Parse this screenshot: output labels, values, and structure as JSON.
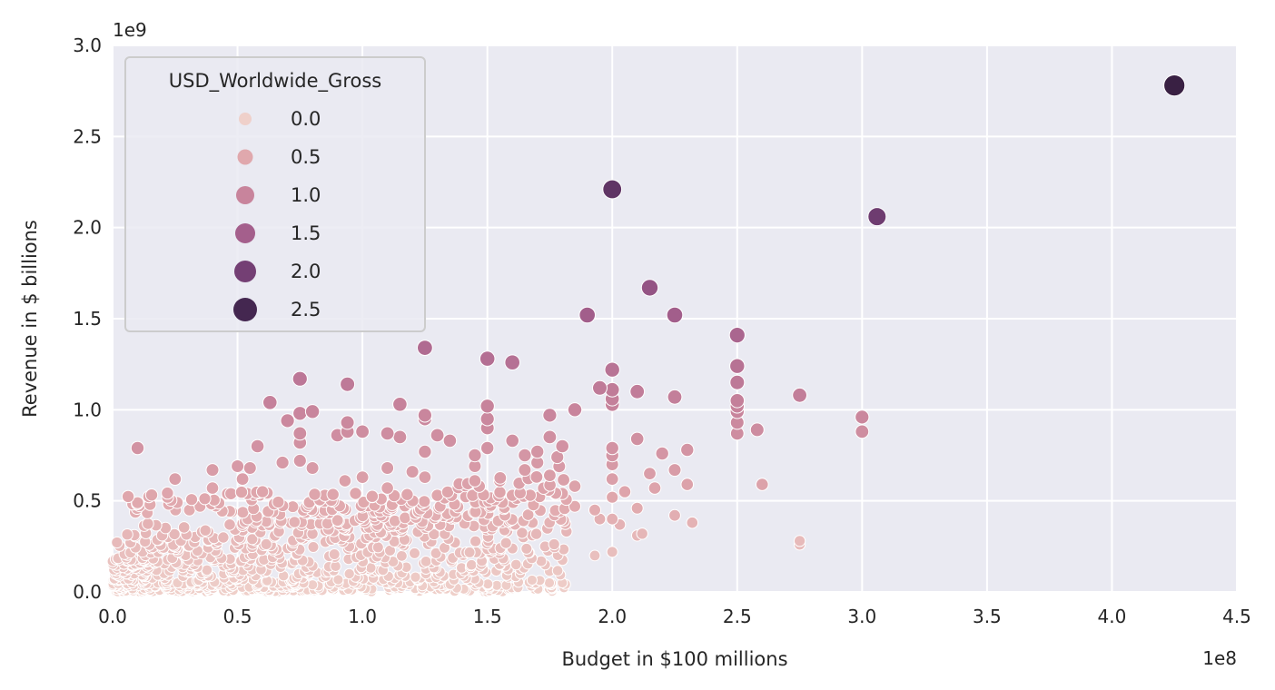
{
  "chart_data": {
    "type": "scatter",
    "title": "",
    "xlabel": "Budget in $100 millions",
    "ylabel": "Revenue in $ billions",
    "x_offset_label": "1e8",
    "y_offset_label": "1e9",
    "xlim": [
      0,
      4.5
    ],
    "ylim": [
      0,
      3.0
    ],
    "x_ticks": [
      "0.0",
      "0.5",
      "1.0",
      "1.5",
      "2.0",
      "2.5",
      "3.0",
      "3.5",
      "4.0",
      "4.5"
    ],
    "y_ticks": [
      "0.0",
      "0.5",
      "1.0",
      "1.5",
      "2.0",
      "2.5",
      "3.0"
    ],
    "grid": true,
    "background": "#eaeaf2",
    "hue_variable": "USD_Worldwide_Gross",
    "size_variable": "USD_Worldwide_Gross",
    "legend": {
      "title": "USD_Worldwide_Gross",
      "position": "upper left",
      "entries": [
        {
          "label": "0.0",
          "color": "#efd0ca",
          "size": 7
        },
        {
          "label": "0.5",
          "color": "#e0a8ad",
          "size": 8.5
        },
        {
          "label": "1.0",
          "color": "#c8849c",
          "size": 10
        },
        {
          "label": "1.5",
          "color": "#a45f8c",
          "size": 11
        },
        {
          "label": "2.0",
          "color": "#743f74",
          "size": 12
        },
        {
          "label": "2.5",
          "color": "#442750",
          "size": 13
        }
      ]
    },
    "units_note": "x in 1e8 USD, y in 1e9 USD",
    "outliers": [
      {
        "x": 4.25,
        "y": 2.78
      },
      {
        "x": 2.0,
        "y": 2.21
      },
      {
        "x": 3.06,
        "y": 2.06
      },
      {
        "x": 2.15,
        "y": 1.67
      },
      {
        "x": 1.9,
        "y": 1.52
      },
      {
        "x": 2.25,
        "y": 1.52
      },
      {
        "x": 2.5,
        "y": 1.41
      },
      {
        "x": 1.25,
        "y": 1.34
      },
      {
        "x": 1.5,
        "y": 1.28
      },
      {
        "x": 1.6,
        "y": 1.26
      },
      {
        "x": 2.5,
        "y": 1.24
      },
      {
        "x": 2.0,
        "y": 1.22
      },
      {
        "x": 0.75,
        "y": 1.17
      },
      {
        "x": 2.5,
        "y": 1.15
      },
      {
        "x": 0.94,
        "y": 1.14
      },
      {
        "x": 1.95,
        "y": 1.12
      },
      {
        "x": 2.0,
        "y": 1.11
      },
      {
        "x": 2.1,
        "y": 1.1
      },
      {
        "x": 2.75,
        "y": 1.08
      },
      {
        "x": 2.25,
        "y": 1.07
      },
      {
        "x": 2.0,
        "y": 1.06
      },
      {
        "x": 2.5,
        "y": 1.05
      },
      {
        "x": 0.63,
        "y": 1.04
      },
      {
        "x": 1.15,
        "y": 1.03
      },
      {
        "x": 2.0,
        "y": 1.03
      },
      {
        "x": 1.5,
        "y": 1.02
      },
      {
        "x": 2.5,
        "y": 1.02
      },
      {
        "x": 1.85,
        "y": 1.0
      },
      {
        "x": 2.5,
        "y": 0.99
      },
      {
        "x": 0.8,
        "y": 0.99
      },
      {
        "x": 0.75,
        "y": 0.98
      },
      {
        "x": 1.25,
        "y": 0.97
      },
      {
        "x": 1.75,
        "y": 0.97
      },
      {
        "x": 3.0,
        "y": 0.96
      },
      {
        "x": 1.25,
        "y": 0.95
      },
      {
        "x": 1.5,
        "y": 0.95
      },
      {
        "x": 0.7,
        "y": 0.94
      },
      {
        "x": 0.94,
        "y": 0.93
      },
      {
        "x": 2.5,
        "y": 0.93
      },
      {
        "x": 1.5,
        "y": 0.9
      },
      {
        "x": 2.58,
        "y": 0.89
      },
      {
        "x": 0.94,
        "y": 0.88
      },
      {
        "x": 1.0,
        "y": 0.88
      },
      {
        "x": 3.0,
        "y": 0.88
      },
      {
        "x": 0.75,
        "y": 0.87
      },
      {
        "x": 1.1,
        "y": 0.87
      },
      {
        "x": 2.5,
        "y": 0.87
      },
      {
        "x": 1.3,
        "y": 0.86
      },
      {
        "x": 0.9,
        "y": 0.86
      },
      {
        "x": 1.75,
        "y": 0.85
      },
      {
        "x": 1.15,
        "y": 0.85
      },
      {
        "x": 2.1,
        "y": 0.84
      },
      {
        "x": 1.35,
        "y": 0.83
      },
      {
        "x": 0.75,
        "y": 0.82
      },
      {
        "x": 1.6,
        "y": 0.83
      },
      {
        "x": 0.58,
        "y": 0.8
      },
      {
        "x": 0.1,
        "y": 0.79
      },
      {
        "x": 1.8,
        "y": 0.8
      },
      {
        "x": 1.5,
        "y": 0.79
      },
      {
        "x": 2.0,
        "y": 0.79
      },
      {
        "x": 2.3,
        "y": 0.78
      },
      {
        "x": 1.7,
        "y": 0.77
      },
      {
        "x": 1.25,
        "y": 0.77
      },
      {
        "x": 2.2,
        "y": 0.76
      },
      {
        "x": 1.45,
        "y": 0.75
      },
      {
        "x": 1.65,
        "y": 0.75
      },
      {
        "x": 2.0,
        "y": 0.75
      },
      {
        "x": 1.78,
        "y": 0.74
      },
      {
        "x": 0.75,
        "y": 0.72
      },
      {
        "x": 0.68,
        "y": 0.71
      },
      {
        "x": 1.7,
        "y": 0.71
      },
      {
        "x": 2.0,
        "y": 0.7
      },
      {
        "x": 1.45,
        "y": 0.69
      },
      {
        "x": 0.5,
        "y": 0.69
      },
      {
        "x": 0.55,
        "y": 0.68
      },
      {
        "x": 1.1,
        "y": 0.68
      },
      {
        "x": 0.8,
        "y": 0.68
      },
      {
        "x": 0.4,
        "y": 0.67
      },
      {
        "x": 2.25,
        "y": 0.67
      },
      {
        "x": 1.65,
        "y": 0.67
      },
      {
        "x": 1.2,
        "y": 0.66
      },
      {
        "x": 2.15,
        "y": 0.65
      },
      {
        "x": 1.75,
        "y": 0.64
      },
      {
        "x": 1.0,
        "y": 0.63
      },
      {
        "x": 1.25,
        "y": 0.63
      },
      {
        "x": 0.25,
        "y": 0.62
      },
      {
        "x": 0.52,
        "y": 0.62
      },
      {
        "x": 2.0,
        "y": 0.62
      },
      {
        "x": 1.45,
        "y": 0.61
      },
      {
        "x": 0.93,
        "y": 0.61
      },
      {
        "x": 1.55,
        "y": 0.61
      },
      {
        "x": 2.3,
        "y": 0.59
      },
      {
        "x": 2.6,
        "y": 0.59
      },
      {
        "x": 1.85,
        "y": 0.58
      },
      {
        "x": 2.17,
        "y": 0.57
      },
      {
        "x": 1.1,
        "y": 0.57
      },
      {
        "x": 0.4,
        "y": 0.57
      },
      {
        "x": 1.8,
        "y": 0.54
      },
      {
        "x": 1.77,
        "y": 0.54
      },
      {
        "x": 2.05,
        "y": 0.55
      },
      {
        "x": 1.6,
        "y": 0.53
      },
      {
        "x": 2.0,
        "y": 0.52
      },
      {
        "x": 0.6,
        "y": 0.55
      },
      {
        "x": 0.22,
        "y": 0.52
      },
      {
        "x": 0.85,
        "y": 0.53
      },
      {
        "x": 1.3,
        "y": 0.53
      },
      {
        "x": 0.1,
        "y": 0.49
      },
      {
        "x": 0.15,
        "y": 0.48
      },
      {
        "x": 0.35,
        "y": 0.47
      },
      {
        "x": 1.85,
        "y": 0.47
      },
      {
        "x": 2.1,
        "y": 0.46
      },
      {
        "x": 1.93,
        "y": 0.45
      },
      {
        "x": 2.25,
        "y": 0.42
      },
      {
        "x": 1.95,
        "y": 0.4
      },
      {
        "x": 2.0,
        "y": 0.4
      },
      {
        "x": 2.32,
        "y": 0.38
      },
      {
        "x": 2.03,
        "y": 0.37
      },
      {
        "x": 2.12,
        "y": 0.32
      },
      {
        "x": 2.1,
        "y": 0.31
      },
      {
        "x": 2.75,
        "y": 0.28
      },
      {
        "x": 2.75,
        "y": 0.26
      },
      {
        "x": 1.93,
        "y": 0.2
      },
      {
        "x": 2.0,
        "y": 0.22
      },
      {
        "x": 1.8,
        "y": 0.05
      },
      {
        "x": 1.5,
        "y": 0.04
      }
    ],
    "dense_cluster_note": "Hundreds of overlapping points concentrated in x 0.0–1.8 (1e8), y 0.0–0.5 (1e9); rendered procedurally"
  }
}
